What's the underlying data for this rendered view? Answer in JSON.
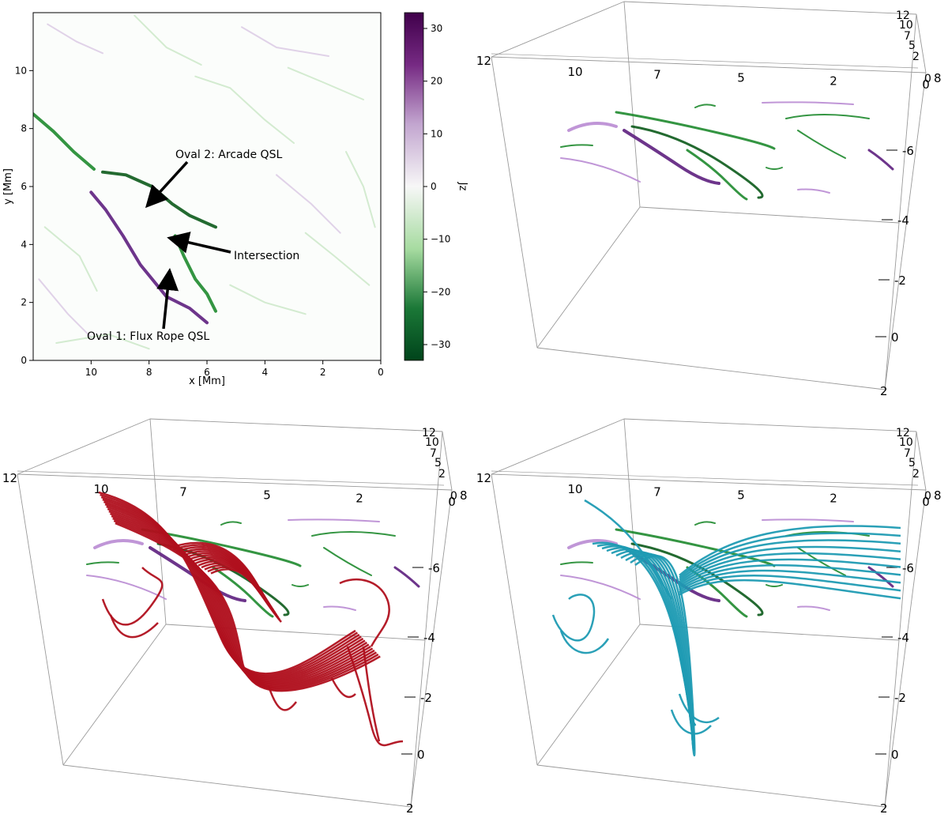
{
  "colors": {
    "green": "#1e8a2e",
    "dark_green": "#0b5a1a",
    "purple": "#5d1f7e",
    "light_purple": "#b98bd3",
    "red_field_lines": "#b0101e",
    "teal_field_lines": "#1f9bb3",
    "box_edge": "#9a9a9a"
  },
  "chart_data": [
    {
      "type": "heatmap",
      "panel": "top-left",
      "title": "",
      "xlabel": "x [Mm]",
      "ylabel": "y [Mm]",
      "xlim": [
        12,
        0
      ],
      "ylim": [
        0,
        12
      ],
      "x_ticks": [
        "10",
        "8",
        "6",
        "4",
        "2",
        "0"
      ],
      "y_ticks": [
        "0",
        "2",
        "4",
        "6",
        "8",
        "10"
      ],
      "colorbar": {
        "label": "Jz",
        "range": [
          -33,
          33
        ],
        "ticks": [
          "30",
          "20",
          "10",
          "0",
          "−10",
          "−20",
          "−30"
        ]
      },
      "annotations": [
        {
          "text": "Oval 2: Arcade QSL",
          "arrow_to": [
            8.0,
            5.4
          ]
        },
        {
          "text": "Intersection",
          "arrow_to": [
            7.2,
            4.2
          ]
        },
        {
          "text": "Oval 1: Flux Rope QSL",
          "arrow_to": [
            7.3,
            3.0
          ]
        }
      ],
      "features": [
        {
          "name": "arcade-qsl",
          "sign": "negative",
          "points": [
            [
              9.6,
              6.5
            ],
            [
              8.8,
              6.4
            ],
            [
              7.9,
              6.0
            ],
            [
              7.2,
              5.4
            ],
            [
              6.6,
              5.0
            ],
            [
              5.7,
              4.6
            ]
          ]
        },
        {
          "name": "flux-rope-qsl",
          "sign": "positive",
          "points": [
            [
              10.0,
              5.8
            ],
            [
              9.5,
              5.2
            ],
            [
              8.9,
              4.3
            ],
            [
              8.3,
              3.3
            ],
            [
              7.4,
              2.2
            ],
            [
              6.6,
              1.8
            ],
            [
              6.0,
              1.3
            ]
          ]
        },
        {
          "name": "lower-green-qsl",
          "sign": "negative",
          "points": [
            [
              7.1,
              4.3
            ],
            [
              6.8,
              3.6
            ],
            [
              6.4,
              2.8
            ],
            [
              6.0,
              2.3
            ],
            [
              5.7,
              1.7
            ]
          ]
        },
        {
          "name": "diagonal-green-qsl",
          "sign": "negative",
          "points": [
            [
              12.0,
              8.5
            ],
            [
              11.3,
              7.9
            ],
            [
              10.6,
              7.2
            ],
            [
              9.9,
              6.6
            ]
          ]
        }
      ]
    },
    {
      "type": "3d-box",
      "panel": "top-right",
      "top_axis_ticks": [
        "12",
        "10",
        "7",
        "5",
        "2",
        "0"
      ],
      "corner_ticks": [
        "12",
        "10",
        "7",
        "5",
        "2",
        "0"
      ],
      "side_axis_ticks": [
        "8",
        "-6",
        "-4",
        "-2",
        "0",
        "2"
      ],
      "field_lines": "none"
    },
    {
      "type": "3d-box",
      "panel": "bottom-left",
      "top_axis_ticks": [
        "12",
        "10",
        "7",
        "5",
        "2",
        "0"
      ],
      "corner_ticks": [
        "12",
        "10",
        "7",
        "5",
        "2",
        "0"
      ],
      "side_axis_ticks": [
        "8",
        "-6",
        "-4",
        "-2",
        "0",
        "2"
      ],
      "field_lines": "red"
    },
    {
      "type": "3d-box",
      "panel": "bottom-right",
      "top_axis_ticks": [
        "12",
        "10",
        "7",
        "5",
        "2",
        "0"
      ],
      "corner_ticks": [
        "12",
        "10",
        "7",
        "5",
        "2",
        "0"
      ],
      "side_axis_ticks": [
        "8",
        "-6",
        "-4",
        "-2",
        "0",
        "2"
      ],
      "field_lines": "teal"
    }
  ]
}
